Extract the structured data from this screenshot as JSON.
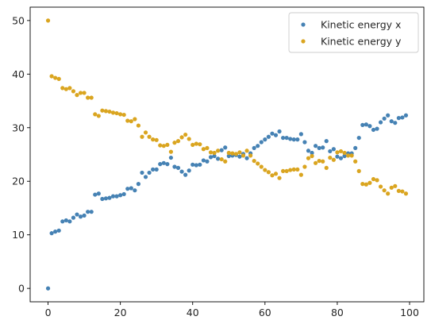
{
  "chart_data": {
    "type": "scatter",
    "title": "",
    "xlabel": "",
    "ylabel": "",
    "xlim": [
      -4.95,
      103.95
    ],
    "ylim": [
      -2.5,
      52.5
    ],
    "xticks": [
      0,
      20,
      40,
      60,
      80,
      100
    ],
    "yticks": [
      0,
      10,
      20,
      30,
      40,
      50
    ],
    "grid": false,
    "legend_position": "top-right",
    "series": [
      {
        "name": "Kinetic energy x",
        "color": "#4682b4",
        "x": [
          0,
          1,
          2,
          3,
          4,
          5,
          6,
          7,
          8,
          9,
          10,
          11,
          12,
          13,
          14,
          15,
          16,
          17,
          18,
          19,
          20,
          21,
          22,
          23,
          24,
          25,
          26,
          27,
          28,
          29,
          30,
          31,
          32,
          33,
          34,
          35,
          36,
          37,
          38,
          39,
          40,
          41,
          42,
          43,
          44,
          45,
          46,
          47,
          48,
          49,
          50,
          51,
          52,
          53,
          54,
          55,
          56,
          57,
          58,
          59,
          60,
          61,
          62,
          63,
          64,
          65,
          66,
          67,
          68,
          69,
          70,
          71,
          72,
          73,
          74,
          75,
          76,
          77,
          78,
          79,
          80,
          81,
          82,
          83,
          84,
          85,
          86,
          87,
          88,
          89,
          90,
          91,
          92,
          93,
          94,
          95,
          96,
          97,
          98,
          99
        ],
        "y": [
          0,
          10.3,
          10.6,
          10.8,
          12.5,
          12.7,
          12.5,
          13.2,
          13.8,
          13.4,
          13.6,
          14.3,
          14.3,
          17.5,
          17.7,
          16.7,
          16.8,
          16.9,
          17.2,
          17.2,
          17.4,
          17.6,
          18.6,
          18.7,
          18.3,
          19.5,
          21.6,
          20.8,
          21.6,
          22.2,
          22.2,
          23.2,
          23.4,
          23.2,
          24.4,
          22.7,
          22.5,
          21.8,
          21.2,
          22.0,
          23.1,
          23.0,
          23.1,
          23.9,
          23.7,
          24.5,
          24.7,
          24.2,
          25.8,
          26.3,
          24.7,
          24.8,
          24.9,
          24.6,
          25.1,
          24.3,
          25.2,
          26.2,
          26.6,
          27.3,
          27.8,
          28.3,
          28.9,
          28.6,
          29.3,
          28.1,
          28.1,
          27.9,
          27.8,
          27.8,
          28.8,
          27.3,
          25.7,
          25.3,
          26.6,
          26.2,
          26.3,
          27.5,
          25.6,
          26.0,
          24.6,
          24.3,
          24.7,
          25.2,
          25.2,
          26.2,
          28.1,
          30.5,
          30.6,
          30.3,
          29.6,
          29.8,
          31.0,
          31.7,
          32.3,
          31.2,
          30.9,
          31.8,
          31.9,
          32.3
        ]
      },
      {
        "name": "Kinetic energy y",
        "color": "#daa520",
        "x": [
          0,
          1,
          2,
          3,
          4,
          5,
          6,
          7,
          8,
          9,
          10,
          11,
          12,
          13,
          14,
          15,
          16,
          17,
          18,
          19,
          20,
          21,
          22,
          23,
          24,
          25,
          26,
          27,
          28,
          29,
          30,
          31,
          32,
          33,
          34,
          35,
          36,
          37,
          38,
          39,
          40,
          41,
          42,
          43,
          44,
          45,
          46,
          47,
          48,
          49,
          50,
          51,
          52,
          53,
          54,
          55,
          56,
          57,
          58,
          59,
          60,
          61,
          62,
          63,
          64,
          65,
          66,
          67,
          68,
          69,
          70,
          71,
          72,
          73,
          74,
          75,
          76,
          77,
          78,
          79,
          80,
          81,
          82,
          83,
          84,
          85,
          86,
          87,
          88,
          89,
          90,
          91,
          92,
          93,
          94,
          95,
          96,
          97,
          98,
          99
        ],
        "y": [
          50,
          39.6,
          39.3,
          39.1,
          37.4,
          37.2,
          37.4,
          36.8,
          36.1,
          36.5,
          36.5,
          35.6,
          35.6,
          32.5,
          32.2,
          33.2,
          33.1,
          33.0,
          32.8,
          32.7,
          32.5,
          32.4,
          31.3,
          31.2,
          31.6,
          30.4,
          28.3,
          29.1,
          28.3,
          27.8,
          27.7,
          26.7,
          26.6,
          26.8,
          25.5,
          27.2,
          27.5,
          28.2,
          28.7,
          27.9,
          26.8,
          27.0,
          26.9,
          26.0,
          26.2,
          25.4,
          25.3,
          25.7,
          24.1,
          23.7,
          25.3,
          25.2,
          25.1,
          25.4,
          24.8,
          25.7,
          24.8,
          23.8,
          23.3,
          22.7,
          22.1,
          21.7,
          21.1,
          21.4,
          20.6,
          21.9,
          21.9,
          22.1,
          22.2,
          22.2,
          21.2,
          22.7,
          24.3,
          24.7,
          23.4,
          23.8,
          23.7,
          22.5,
          24.4,
          24.0,
          25.4,
          25.6,
          25.3,
          24.8,
          24.8,
          23.7,
          21.9,
          19.5,
          19.4,
          19.7,
          20.4,
          20.2,
          19.0,
          18.3,
          17.7,
          18.8,
          19.1,
          18.2,
          18.1,
          17.7
        ]
      }
    ]
  }
}
